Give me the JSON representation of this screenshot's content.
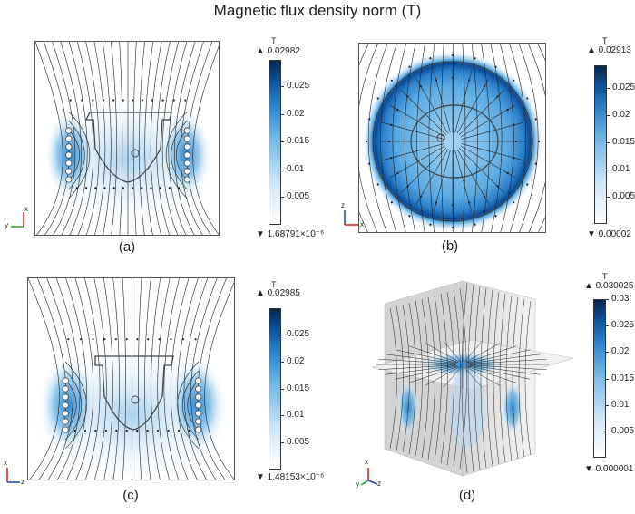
{
  "title": "Magnetic flux density norm (T)",
  "panels": {
    "a": {
      "caption": "(a)",
      "axes": {
        "vertical": "x",
        "horizontal": "y"
      },
      "colorbar": {
        "unit": "T",
        "max": "▲ 0.02982",
        "min": "▼ 1.68791×10⁻⁶",
        "ticks": [
          "0.025",
          "0.02",
          "0.015",
          "0.01",
          "0.005"
        ]
      }
    },
    "b": {
      "caption": "(b)",
      "axes": {
        "vertical": "z",
        "horizontal": "x"
      },
      "colorbar": {
        "unit": "T",
        "max": "▲ 0.02913",
        "min": "▼ 0.00002",
        "ticks": [
          "0.025",
          "0.02",
          "0.015",
          "0.01",
          "0.005"
        ]
      }
    },
    "c": {
      "caption": "(c)",
      "axes": {
        "vertical": "x",
        "horizontal": "z"
      },
      "colorbar": {
        "unit": "T",
        "max": "▲ 0.02985",
        "min": "▼ 1.48153×10⁻⁶",
        "ticks": [
          "0.025",
          "0.02",
          "0.015",
          "0.01",
          "0.005"
        ]
      }
    },
    "d": {
      "caption": "(d)",
      "axes": {
        "vertical": "x",
        "left": "y",
        "right": "z"
      },
      "colorbar": {
        "unit": "T",
        "max": "▲ 0.030025",
        "min": "▼ 0.000001",
        "ticks": [
          "0.03",
          "0.025",
          "0.02",
          "0.015",
          "0.01",
          "0.005"
        ]
      }
    }
  },
  "colors": {
    "field_high": "#0c4f9a",
    "field_mid": "#2e86d0",
    "field_low": "#cfe6f7",
    "streamline": "#222222"
  }
}
